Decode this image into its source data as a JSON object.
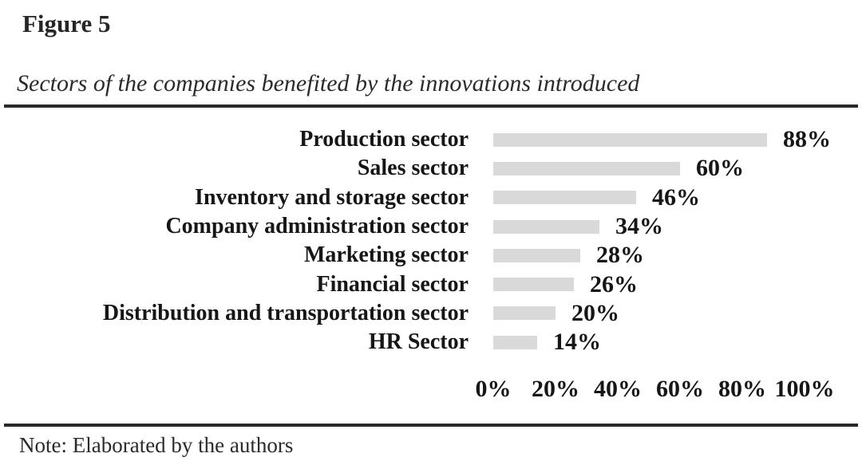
{
  "figure_label": "Figure 5",
  "title": "Sectors of the companies benefited by the innovations introduced",
  "note": "Note: Elaborated by the authors",
  "colors": {
    "bar": "#d9d9d9",
    "text": "#1c1c1c",
    "rule": "#2a2a2a"
  },
  "chart_data": {
    "type": "bar",
    "orientation": "horizontal",
    "title": "Sectors of the companies benefited by the innovations introduced",
    "categories": [
      "Production sector",
      "Sales sector",
      "Inventory and storage sector",
      "Company administration sector",
      "Marketing sector",
      "Financial sector",
      "Distribution and transportation sector",
      "HR Sector"
    ],
    "values": [
      88,
      60,
      46,
      34,
      28,
      26,
      20,
      14
    ],
    "value_labels": [
      "88%",
      "60%",
      "46%",
      "34%",
      "28%",
      "26%",
      "20%",
      "14%"
    ],
    "x_ticks": [
      "0%",
      "20%",
      "40%",
      "60%",
      "80%",
      "100%"
    ],
    "x_tick_values": [
      0,
      20,
      40,
      60,
      80,
      100
    ],
    "xlim": [
      0,
      100
    ],
    "xlabel": "",
    "ylabel": "",
    "data_labels": "outside-end",
    "grid": false,
    "legend": false,
    "bar_color": "#d9d9d9"
  }
}
